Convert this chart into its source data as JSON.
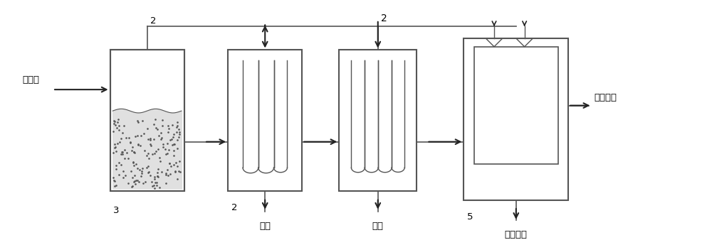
{
  "background_color": "#ffffff",
  "line_color": "#555555",
  "arrow_color": "#222222",
  "text_color": "#000000",
  "fill_color": "#cccccc",
  "dot_fill": "#aaaaaa",
  "label_left": "硫蕋气",
  "label_right": "二氧化硫",
  "label_3": "3",
  "label_2a": "2",
  "label_2b": "2",
  "label_2c": "2",
  "label_5": "5",
  "label_yiliu1": "液硫",
  "label_yiliu2": "液硫",
  "label_hanchen": "含尘液硫",
  "figsize": [
    10,
    3.38
  ],
  "dpi": 100
}
